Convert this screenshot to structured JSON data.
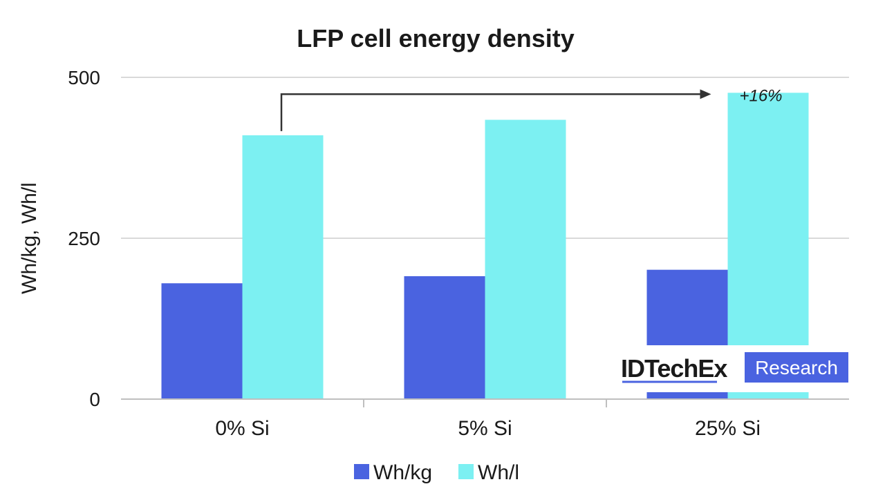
{
  "chart_data": {
    "type": "bar",
    "title": "LFP cell energy density",
    "xlabel": "",
    "ylabel": "Wh/kg, Wh/l",
    "ylim": [
      0,
      500
    ],
    "yticks": [
      0,
      250,
      500
    ],
    "grid": true,
    "legend_position": "bottom",
    "categories": [
      "0% Si",
      "5% Si",
      "25% Si"
    ],
    "series": [
      {
        "name": "Wh/kg",
        "values": [
          180,
          191,
          201
        ],
        "color": "#4a63e0"
      },
      {
        "name": "Wh/l",
        "values": [
          410,
          434,
          476
        ],
        "color": "#7cf0f2"
      }
    ],
    "annotation": {
      "text": "+16%",
      "from_category": "0% Si",
      "to_category": "25% Si",
      "series": "Wh/l"
    }
  },
  "logo": {
    "brand": "IDTechEx",
    "suffix": "Research",
    "suffix_bg": "#4a63e0"
  },
  "colors": {
    "grid": "#d9d9d9",
    "axis": "#bfbfbf",
    "arrow": "#333333"
  }
}
